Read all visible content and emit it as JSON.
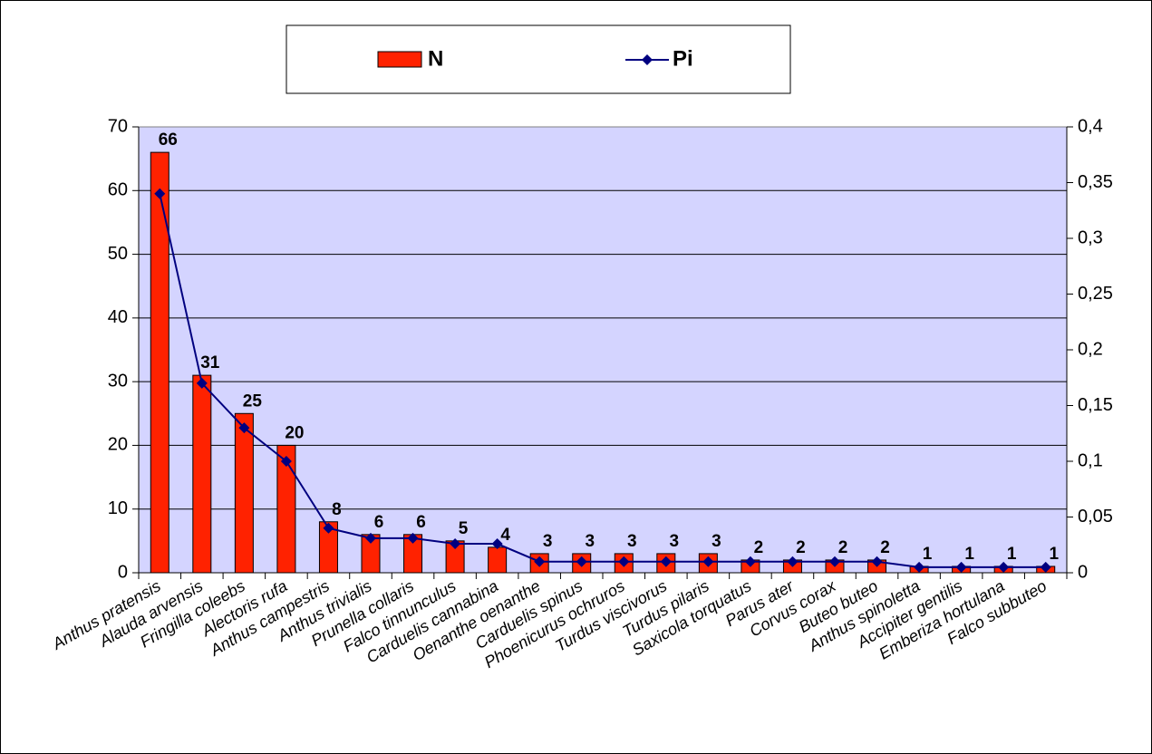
{
  "chart_data": {
    "type": "combo",
    "categories": [
      "Anthus pratensis",
      "Alauda arvensis",
      "Fringilla coleebs",
      "Alectoris rufa",
      "Anthus campestris",
      "Anthus trivialis",
      "Prunella collaris",
      "Falco tinnunculus",
      "Carduelis cannabina",
      "Oenanthe oenanthe",
      "Carduelis spinus",
      "Phoenicurus ochruros",
      "Turdus viscivorus",
      "Turdus pilaris",
      "Saxicola torquatus",
      "Parus ater",
      "Corvus corax",
      "Buteo buteo",
      "Anthus spinoletta",
      "Accipiter gentilis",
      "Emberiza hortulana",
      "Falco subbuteo"
    ],
    "series": [
      {
        "name": "N",
        "type": "bar",
        "color": "#ff2200",
        "values": [
          66,
          31,
          25,
          20,
          8,
          6,
          6,
          5,
          4,
          3,
          3,
          3,
          3,
          3,
          2,
          2,
          2,
          2,
          1,
          1,
          1,
          1
        ]
      },
      {
        "name": "Pi",
        "type": "line",
        "axis": "y2",
        "color": "#000080",
        "values": [
          0.34,
          0.17,
          0.13,
          0.1,
          0.04,
          0.031,
          0.031,
          0.026,
          0.026,
          0.01,
          0.01,
          0.01,
          0.01,
          0.01,
          0.01,
          0.01,
          0.01,
          0.01,
          0.005,
          0.005,
          0.005,
          0.005
        ]
      }
    ],
    "ylim": [
      0,
      70
    ],
    "yticks": [
      0,
      10,
      20,
      30,
      40,
      50,
      60,
      70
    ],
    "y2lim": [
      0,
      0.4
    ],
    "y2ticks": [
      0,
      {
        "value": 0.05,
        "label": "0,05"
      },
      {
        "value": 0.1,
        "label": "0,1"
      },
      {
        "value": 0.15,
        "label": "0,15"
      },
      {
        "value": 0.2,
        "label": "0,2"
      },
      {
        "value": 0.25,
        "label": "0,25"
      },
      {
        "value": 0.3,
        "label": "0,3"
      },
      {
        "value": 0.35,
        "label": "0,35"
      },
      {
        "value": 0.4,
        "label": "0,4"
      }
    ],
    "grid": true,
    "legend": "top"
  }
}
